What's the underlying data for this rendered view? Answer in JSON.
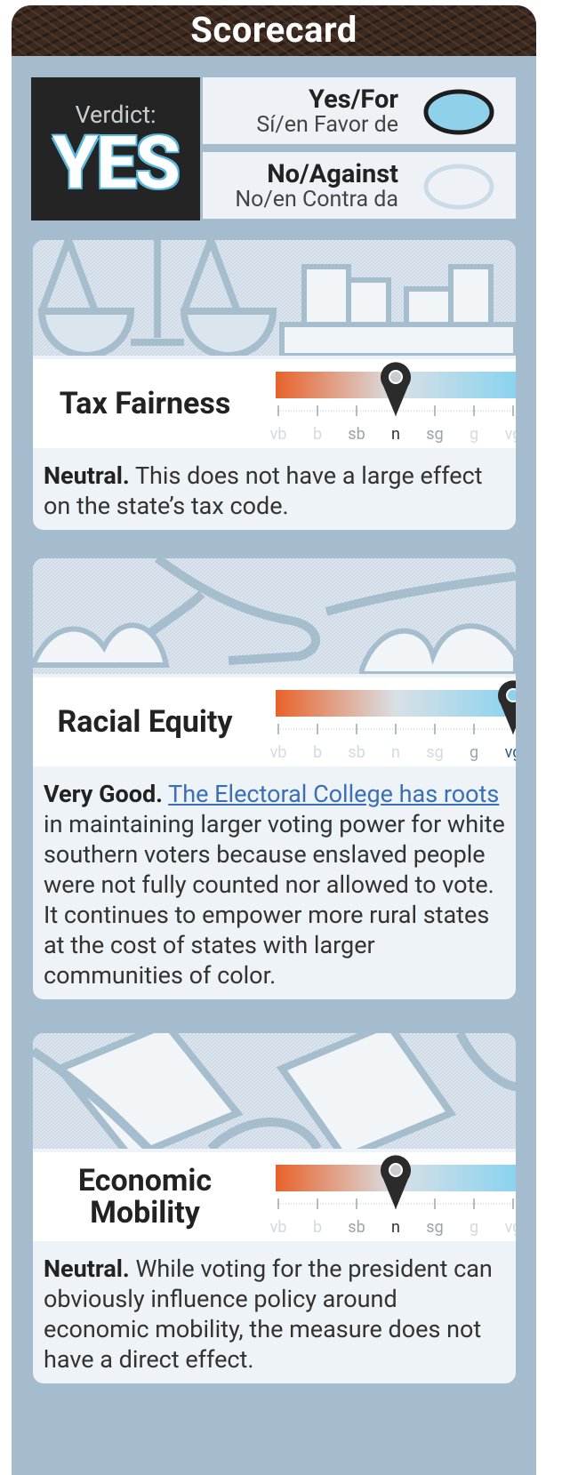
{
  "header": {
    "title": "Scorecard"
  },
  "verdict": {
    "label": "Verdict:",
    "value": "YES",
    "options": [
      {
        "title": "Yes/For",
        "subtitle": "Sí/en Favor de",
        "selected": true
      },
      {
        "title": "No/Against",
        "subtitle": "No/en Contra da",
        "selected": false
      }
    ]
  },
  "sections": [
    {
      "title": "Tax Fairness",
      "scale": [
        "vb",
        "b",
        "sb",
        "n",
        "sg",
        "g",
        "vg"
      ],
      "rating": "n",
      "lead": "Neutral.",
      "link": null,
      "text": "This does not have a large effect on the state’s tax code."
    },
    {
      "title": "Racial Equity",
      "scale": [
        "vb",
        "b",
        "sb",
        "n",
        "sg",
        "g",
        "vg"
      ],
      "rating": "vg",
      "lead": "Very Good.",
      "link": "The Electoral College has roots",
      "text": "in maintaining larger voting power for white southern voters because enslaved people were not fully counted nor allowed to vote. It continues to empower more rural states at the cost of states with larger communities of color."
    },
    {
      "title": "Economic Mobility",
      "scale": [
        "vb",
        "b",
        "sb",
        "n",
        "sg",
        "g",
        "vg"
      ],
      "rating": "n",
      "lead": "Neutral.",
      "link": null,
      "text": "While voting for the president can obviously influence policy around economic mobility, the measure does not have a direct effect."
    }
  ]
}
